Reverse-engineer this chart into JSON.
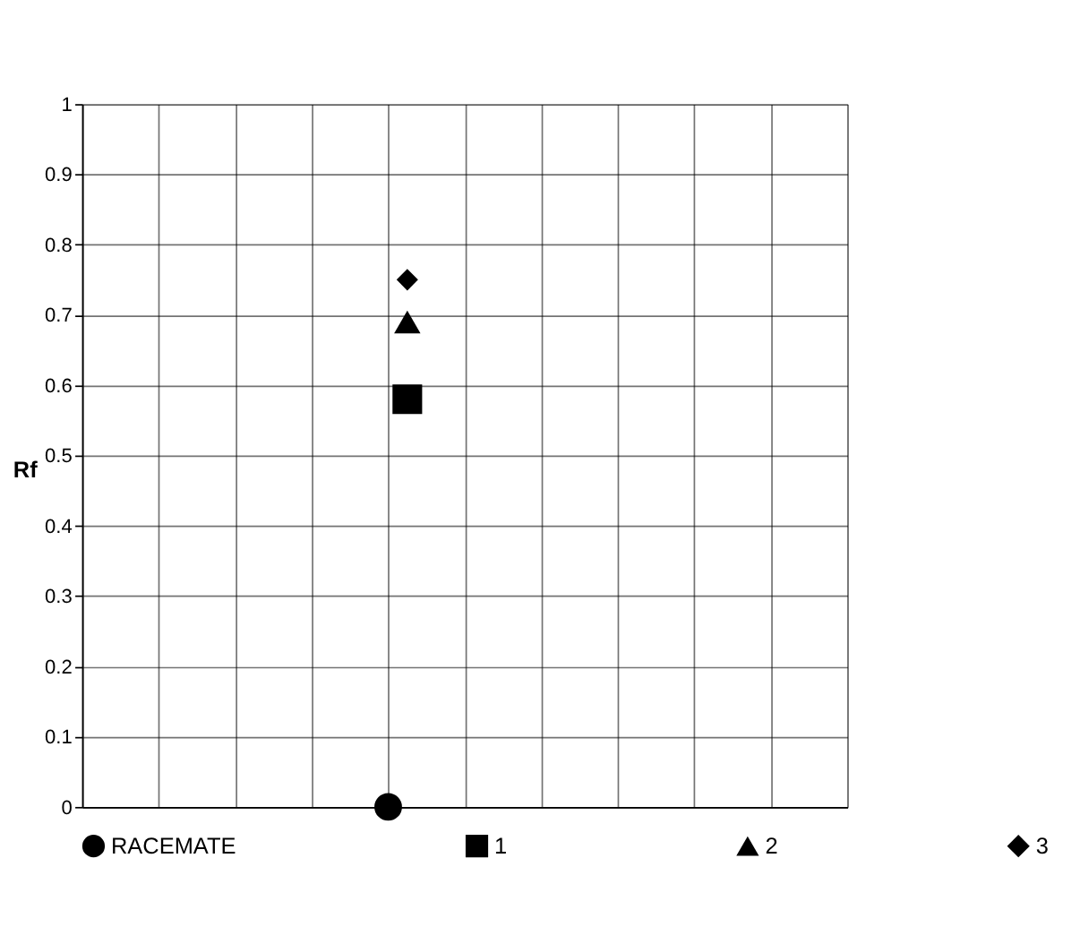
{
  "chart_data": {
    "type": "scatter",
    "ylabel": "Rf",
    "categories": [
      null,
      null,
      null,
      null,
      null,
      null,
      null,
      null,
      null,
      null,
      null,
      null,
      null,
      null,
      null,
      null,
      null,
      null,
      null,
      null,
      null,
      null,
      null,
      null,
      null,
      null,
      null,
      null,
      null,
      null,
      null,
      null,
      null,
      null,
      null,
      null,
      null,
      null,
      null,
      null,
      null
    ],
    "ylim": [
      0,
      1
    ],
    "yticks": [
      0,
      0.1,
      0.2,
      0.3,
      0.4,
      0.5,
      0.6,
      0.7,
      0.8,
      0.9,
      1
    ],
    "tick_labels": "y",
    "grid": true,
    "legend": "bottom",
    "series": [
      {
        "name": "RACEMATE",
        "color": "#000000",
        "marker": "circle",
        "values": [
          null,
          null,
          null,
          null,
          null,
          null,
          null,
          null,
          null,
          null,
          null,
          null,
          null,
          null,
          null,
          null,
          0,
          null,
          null,
          null,
          null,
          null,
          null,
          null,
          null,
          null,
          null,
          null,
          null,
          null,
          null,
          null,
          null,
          null,
          null,
          null,
          null,
          null,
          null,
          null,
          null
        ]
      },
      {
        "name": "1",
        "color": "#000000",
        "marker": "square",
        "values": [
          null,
          null,
          null,
          null,
          null,
          null,
          null,
          null,
          null,
          null,
          null,
          null,
          null,
          null,
          null,
          null,
          null,
          0.58,
          null,
          null,
          null,
          null,
          null,
          null,
          null,
          null,
          null,
          null,
          null,
          null,
          null,
          null,
          null,
          null,
          null,
          null,
          null,
          null,
          null,
          null,
          null
        ]
      },
      {
        "name": "2",
        "color": "#000000",
        "marker": "triangle",
        "values": [
          null,
          null,
          null,
          null,
          null,
          null,
          null,
          null,
          null,
          null,
          null,
          null,
          null,
          null,
          null,
          null,
          null,
          0.69,
          null,
          null,
          null,
          null,
          null,
          null,
          null,
          null,
          null,
          null,
          null,
          null,
          null,
          null,
          null,
          null,
          null,
          null,
          null,
          null,
          null,
          null,
          null
        ]
      },
      {
        "name": "3",
        "color": "#000000",
        "marker": "diamond",
        "values": [
          null,
          null,
          null,
          null,
          null,
          null,
          null,
          null,
          null,
          null,
          null,
          null,
          null,
          null,
          null,
          null,
          null,
          0.75,
          null,
          null,
          null,
          null,
          null,
          null,
          null,
          null,
          null,
          null,
          null,
          null,
          null,
          null,
          null,
          null,
          null,
          null,
          null,
          null,
          null,
          null,
          null
        ]
      }
    ]
  }
}
